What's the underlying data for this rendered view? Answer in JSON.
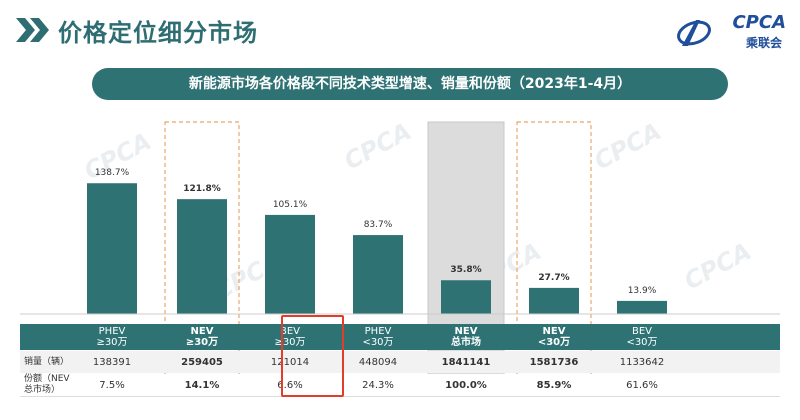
{
  "header": {
    "title": "价格定位细分市场",
    "logo_text": "CPCA",
    "logo_sub": "乘联会"
  },
  "chart_data": {
    "type": "bar",
    "title": "新能源市场各价格段不同技术类型增速、销量和份额（2023年1-4月）",
    "categories": [
      [
        "PHEV",
        "≥30万"
      ],
      [
        "NEV",
        "≥30万"
      ],
      [
        "BEV",
        "≥30万"
      ],
      [
        "PHEV",
        "<30万"
      ],
      [
        "NEV",
        "总市场"
      ],
      [
        "NEV",
        "<30万"
      ],
      [
        "BEV",
        "<30万"
      ]
    ],
    "values": [
      138.7,
      121.8,
      105.1,
      83.7,
      35.8,
      27.7,
      13.9
    ],
    "value_labels": [
      "138.7%",
      "121.8%",
      "105.1%",
      "83.7%",
      "35.8%",
      "27.7%",
      "13.9%"
    ],
    "bold_columns": [
      1,
      4,
      5
    ],
    "ylim": [
      0,
      140
    ],
    "grid": false,
    "table_rows": [
      {
        "label": "销量（辆）",
        "values": [
          "138391",
          "259405",
          "121014",
          "448094",
          "1841141",
          "1581736",
          "1133642"
        ]
      },
      {
        "label": "份额（NEV总市场）",
        "values": [
          "7.5%",
          "14.1%",
          "6.6%",
          "24.3%",
          "100.0%",
          "85.9%",
          "61.6%"
        ]
      }
    ],
    "colors": {
      "bar": "#2f7274",
      "dashed_box": "#e8a66b",
      "shaded_box": "#dcdcdc",
      "highlight": "#e23c2a"
    }
  }
}
